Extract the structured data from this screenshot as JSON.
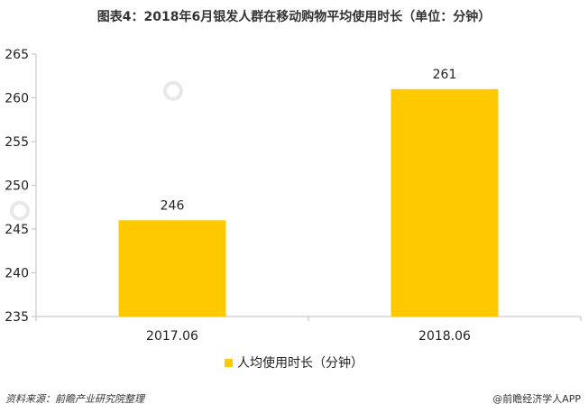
{
  "title": "图表4：2018年6月银发人群在移动购物平均使用时长（单位：分钟）",
  "watermark_text": "前瞻产业研究院",
  "footer": {
    "source": "资料来源：前瞻产业研究院整理",
    "brand": "@前瞻经济学人APP"
  },
  "colors": {
    "bar": "#FFC900",
    "axis": "#bfbfbf",
    "text": "#222222"
  },
  "chart_data": {
    "type": "bar",
    "title": "图表4：2018年6月银发人群在移动购物平均使用时长（单位：分钟）",
    "xlabel": "",
    "ylabel": "",
    "categories": [
      "2017.06",
      "2018.06"
    ],
    "series": [
      {
        "name": "人均使用时长（分钟）",
        "values": [
          246,
          261
        ]
      }
    ],
    "ylim": [
      235,
      265
    ],
    "yticks": [
      235,
      240,
      245,
      250,
      255,
      260,
      265
    ],
    "data_labels": [
      "246",
      "261"
    ],
    "grid": false,
    "legend": "bottom-center"
  }
}
